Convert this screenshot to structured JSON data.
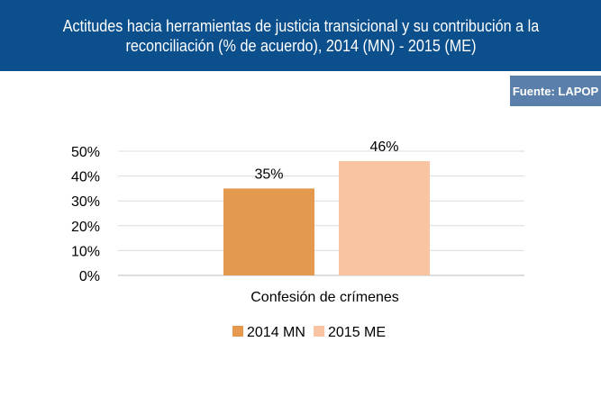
{
  "header": {
    "title": "Actitudes hacia herramientas de justicia transicional y su contribución a la reconciliación (% de acuerdo), 2014 (MN) - 2015 (ME)"
  },
  "source_badge": "Fuente: LAPOP",
  "colors": {
    "header_bg": "#0c4f8d",
    "badge_bg": "#5b7fab",
    "series_2014": "#e39a4f",
    "series_2015": "#f9c4a1"
  },
  "chart_data": {
    "type": "bar",
    "title": "",
    "xlabel": "",
    "ylabel": "",
    "categories": [
      "Confesión de crímenes"
    ],
    "series": [
      {
        "name": "2014 MN",
        "values": [
          35
        ],
        "labels": [
          "35%"
        ],
        "color": "#e39a4f"
      },
      {
        "name": "2015 ME",
        "values": [
          46
        ],
        "labels": [
          "46%"
        ],
        "color": "#f9c4a1"
      }
    ],
    "ylim": [
      0,
      50
    ],
    "yticks": [
      "0%",
      "10%",
      "20%",
      "30%",
      "40%",
      "50%"
    ],
    "grid": true,
    "legend": "bottom"
  }
}
